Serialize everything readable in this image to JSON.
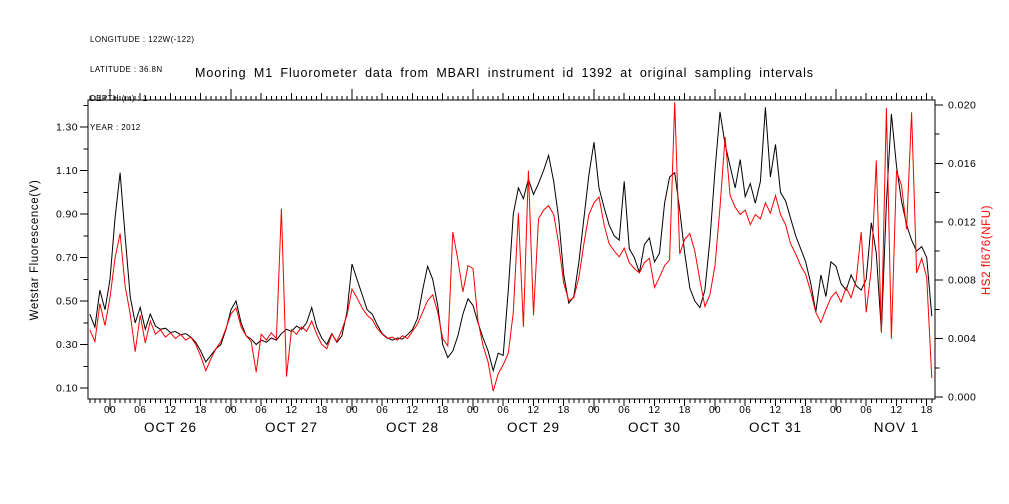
{
  "meta": {
    "lines": [
      "LONGITUDE : 122W(-122)",
      "LATITUDE : 36.8N",
      "DEPTH (m) : 1",
      "YEAR : 2012"
    ]
  },
  "colors": {
    "wetstar": "#000000",
    "hs2": "#ff0000",
    "background": "#ffffff",
    "text": "#000000"
  },
  "chart_data": {
    "type": "line",
    "title": "Mooring M1 Fluorometer data from MBARI instrument id 1392 at original sampling intervals",
    "x_axis": {
      "day_labels": [
        "OCT 26",
        "OCT 27",
        "OCT 28",
        "OCT 29",
        "OCT 30",
        "OCT 31",
        "NOV 1"
      ],
      "hour_label_cycle": [
        "00",
        "06",
        "12",
        "18"
      ],
      "start_hour": -4,
      "end_hour": 163,
      "hours_per_day": 24,
      "minor_tick_hours": 1,
      "major_tick_hours": 6
    },
    "y_left": {
      "label": "Wetstar Fluorescence(V)",
      "tick_labels": [
        "0.10",
        "0.30",
        "0.50",
        "0.70",
        "0.90",
        "1.10",
        "1.30"
      ],
      "major_ticks": [
        0.1,
        0.3,
        0.5,
        0.7,
        0.9,
        1.1,
        1.3
      ],
      "minor_ticks": [
        0.2,
        0.4,
        0.6,
        0.8,
        1.0,
        1.2,
        1.4
      ],
      "color": "#000000"
    },
    "y_right": {
      "label": "HS2 fl676(NFU)",
      "tick_labels": [
        "0.000",
        "0.004",
        "0.008",
        "0.012",
        "0.016",
        "0.020"
      ],
      "major_ticks": [
        0.0,
        0.004,
        0.008,
        0.012,
        0.016,
        0.02
      ],
      "minor_ticks": [
        0.002,
        0.006,
        0.01,
        0.014,
        0.018
      ],
      "color": "#ff0000"
    },
    "grid": false,
    "legend": "none",
    "series": [
      {
        "name": "Wetstar Fluorescence(V)",
        "axis": "left",
        "color": "#000000",
        "t_start": -4,
        "t_step_hours": 1,
        "values": [
          0.44,
          0.38,
          0.55,
          0.46,
          0.6,
          0.88,
          1.09,
          0.8,
          0.52,
          0.4,
          0.47,
          0.37,
          0.44,
          0.385,
          0.37,
          0.375,
          0.355,
          0.36,
          0.345,
          0.35,
          0.335,
          0.31,
          0.27,
          0.22,
          0.25,
          0.28,
          0.3,
          0.37,
          0.46,
          0.5,
          0.4,
          0.34,
          0.325,
          0.3,
          0.32,
          0.31,
          0.33,
          0.32,
          0.35,
          0.37,
          0.36,
          0.385,
          0.37,
          0.4,
          0.47,
          0.38,
          0.33,
          0.3,
          0.35,
          0.31,
          0.34,
          0.45,
          0.67,
          0.6,
          0.53,
          0.46,
          0.44,
          0.39,
          0.35,
          0.33,
          0.32,
          0.33,
          0.325,
          0.345,
          0.37,
          0.42,
          0.55,
          0.66,
          0.6,
          0.48,
          0.3,
          0.24,
          0.27,
          0.34,
          0.44,
          0.51,
          0.48,
          0.4,
          0.33,
          0.27,
          0.18,
          0.26,
          0.25,
          0.55,
          0.9,
          1.02,
          0.97,
          1.06,
          0.99,
          1.04,
          1.1,
          1.17,
          1.05,
          0.88,
          0.62,
          0.49,
          0.52,
          0.68,
          0.88,
          1.08,
          1.23,
          1.02,
          0.93,
          0.85,
          0.8,
          0.78,
          1.05,
          0.74,
          0.7,
          0.63,
          0.76,
          0.79,
          0.68,
          0.72,
          0.95,
          1.07,
          1.09,
          0.92,
          0.72,
          0.56,
          0.5,
          0.47,
          0.55,
          0.78,
          1.1,
          1.37,
          1.22,
          1.12,
          1.02,
          1.15,
          0.98,
          1.04,
          0.95,
          1.05,
          1.39,
          1.07,
          1.22,
          1.0,
          0.96,
          0.88,
          0.8,
          0.74,
          0.68,
          0.58,
          0.45,
          0.62,
          0.52,
          0.68,
          0.66,
          0.58,
          0.55,
          0.62,
          0.57,
          0.55,
          0.6,
          0.86,
          0.72,
          0.36,
          0.95,
          1.36,
          1.12,
          0.96,
          0.85,
          0.78,
          0.73,
          0.75,
          0.7,
          0.43
        ]
      },
      {
        "name": "HS2 fl676(NFU)",
        "axis": "right",
        "color": "#ff0000",
        "t_start": -4,
        "t_step_hours": 1,
        "values": [
          0.0046,
          0.0038,
          0.0064,
          0.0049,
          0.0068,
          0.0095,
          0.0112,
          0.0076,
          0.0057,
          0.0031,
          0.0056,
          0.0037,
          0.0052,
          0.0043,
          0.0046,
          0.0041,
          0.0044,
          0.004,
          0.0043,
          0.0039,
          0.0041,
          0.0036,
          0.0028,
          0.0018,
          0.0026,
          0.0033,
          0.0038,
          0.0047,
          0.0057,
          0.0061,
          0.0048,
          0.0042,
          0.0038,
          0.0017,
          0.0043,
          0.0039,
          0.0044,
          0.004,
          0.0129,
          0.0014,
          0.0046,
          0.0043,
          0.0048,
          0.0045,
          0.0052,
          0.0043,
          0.0036,
          0.0033,
          0.0043,
          0.0038,
          0.0046,
          0.0056,
          0.0074,
          0.0068,
          0.0061,
          0.0056,
          0.0053,
          0.0047,
          0.0043,
          0.004,
          0.0041,
          0.0039,
          0.0042,
          0.004,
          0.0045,
          0.005,
          0.0058,
          0.0066,
          0.007,
          0.0058,
          0.004,
          0.0035,
          0.0113,
          0.0094,
          0.0072,
          0.009,
          0.0088,
          0.0052,
          0.0035,
          0.0024,
          0.0004,
          0.0016,
          0.0022,
          0.003,
          0.0058,
          0.0126,
          0.0048,
          0.0155,
          0.0056,
          0.0122,
          0.0128,
          0.0131,
          0.0125,
          0.0105,
          0.0078,
          0.0066,
          0.0068,
          0.0082,
          0.0105,
          0.0125,
          0.0133,
          0.0137,
          0.0118,
          0.0105,
          0.01,
          0.0096,
          0.0102,
          0.0092,
          0.0088,
          0.0085,
          0.0092,
          0.0095,
          0.0075,
          0.0082,
          0.009,
          0.0094,
          0.0202,
          0.0098,
          0.0108,
          0.0112,
          0.01,
          0.008,
          0.0062,
          0.007,
          0.009,
          0.013,
          0.0178,
          0.0138,
          0.013,
          0.0125,
          0.0128,
          0.0118,
          0.0125,
          0.0122,
          0.0133,
          0.0126,
          0.0138,
          0.0125,
          0.0118,
          0.0105,
          0.0098,
          0.009,
          0.0084,
          0.0072,
          0.0058,
          0.0051,
          0.006,
          0.0068,
          0.0072,
          0.0065,
          0.0075,
          0.0068,
          0.008,
          0.0113,
          0.0058,
          0.0088,
          0.0162,
          0.0044,
          0.0198,
          0.004,
          0.0155,
          0.0145,
          0.0115,
          0.0195,
          0.0085,
          0.0095,
          0.0082,
          0.0013
        ]
      }
    ]
  }
}
